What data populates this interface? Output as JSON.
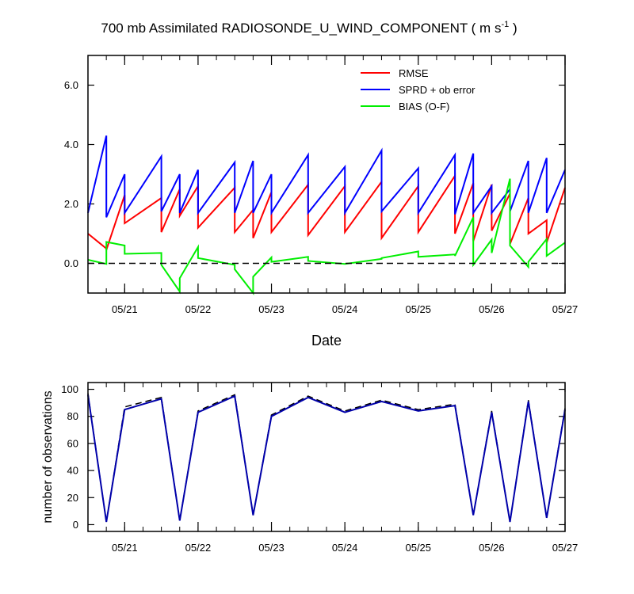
{
  "chart_data": [
    {
      "type": "line",
      "title_main": "700 mb Assimilated RADIOSONDE_U_WIND_COMPONENT ( m s",
      "title_sup": "-1",
      "title_end": " )",
      "xlabel": "Date",
      "ylabel": "",
      "ylim": [
        -1.0,
        7.0
      ],
      "xlim": [
        0,
        6.5
      ],
      "yticks": [
        0.0,
        2.0,
        4.0,
        6.0
      ],
      "ytick_labels": [
        "0.0",
        "2.0",
        "4.0",
        "6.0"
      ],
      "xticks": [
        0.5,
        1.5,
        2.5,
        3.5,
        4.5,
        5.5,
        6.5
      ],
      "xtick_labels": [
        "05/21",
        "05/22",
        "05/23",
        "05/24",
        "05/25",
        "05/26",
        "05/27"
      ],
      "zero_line": 0,
      "legend_position": "top-right",
      "series": [
        {
          "name": "RMSE",
          "color": "#ff0000",
          "points": [
            [
              0,
              1.0
            ],
            [
              0.25,
              0.5
            ],
            [
              0.25,
              0.45
            ],
            [
              0.5,
              2.3
            ],
            [
              0.5,
              1.35
            ],
            [
              1.0,
              2.2
            ],
            [
              1.0,
              1.05
            ],
            [
              1.25,
              2.5
            ],
            [
              1.25,
              1.6
            ],
            [
              1.5,
              2.6
            ],
            [
              1.5,
              1.2
            ],
            [
              2.0,
              2.55
            ],
            [
              2.0,
              1.05
            ],
            [
              2.25,
              1.8
            ],
            [
              2.25,
              0.85
            ],
            [
              2.5,
              2.4
            ],
            [
              2.5,
              1.05
            ],
            [
              3.0,
              2.65
            ],
            [
              3.0,
              0.95
            ],
            [
              3.5,
              2.6
            ],
            [
              3.5,
              1.05
            ],
            [
              4.0,
              2.75
            ],
            [
              4.0,
              0.85
            ],
            [
              4.5,
              2.6
            ],
            [
              4.5,
              1.05
            ],
            [
              5.0,
              2.95
            ],
            [
              5.0,
              1.0
            ],
            [
              5.25,
              2.7
            ],
            [
              5.25,
              0.75
            ],
            [
              5.5,
              2.65
            ],
            [
              5.5,
              1.1
            ],
            [
              5.75,
              2.35
            ],
            [
              5.75,
              0.65
            ],
            [
              6.0,
              2.2
            ],
            [
              6.0,
              1.0
            ],
            [
              6.25,
              1.45
            ],
            [
              6.25,
              0.7
            ],
            [
              6.5,
              2.55
            ]
          ]
        },
        {
          "name": "SPRD + ob error",
          "color": "#0000ff",
          "points": [
            [
              0,
              1.7
            ],
            [
              0.25,
              4.3
            ],
            [
              0.25,
              1.55
            ],
            [
              0.5,
              3.0
            ],
            [
              0.5,
              1.7
            ],
            [
              1.0,
              3.6
            ],
            [
              1.0,
              1.75
            ],
            [
              1.25,
              3.0
            ],
            [
              1.25,
              1.7
            ],
            [
              1.5,
              3.15
            ],
            [
              1.5,
              1.7
            ],
            [
              2.0,
              3.4
            ],
            [
              2.0,
              1.7
            ],
            [
              2.25,
              3.45
            ],
            [
              2.25,
              1.7
            ],
            [
              2.5,
              3.0
            ],
            [
              2.5,
              1.7
            ],
            [
              3.0,
              3.65
            ],
            [
              3.0,
              1.7
            ],
            [
              3.5,
              3.25
            ],
            [
              3.5,
              1.7
            ],
            [
              4.0,
              3.8
            ],
            [
              4.0,
              1.75
            ],
            [
              4.5,
              3.2
            ],
            [
              4.5,
              1.7
            ],
            [
              5.0,
              3.65
            ],
            [
              5.0,
              1.65
            ],
            [
              5.25,
              3.7
            ],
            [
              5.25,
              1.7
            ],
            [
              5.5,
              2.6
            ],
            [
              5.5,
              1.7
            ],
            [
              5.75,
              2.5
            ],
            [
              5.75,
              1.75
            ],
            [
              6.0,
              3.45
            ],
            [
              6.0,
              1.7
            ],
            [
              6.25,
              3.55
            ],
            [
              6.25,
              1.7
            ],
            [
              6.5,
              3.15
            ]
          ]
        },
        {
          "name": "BIAS (O-F)",
          "color": "#00ee00",
          "points": [
            [
              0,
              0.12
            ],
            [
              0.25,
              -0.02
            ],
            [
              0.25,
              0.72
            ],
            [
              0.5,
              0.6
            ],
            [
              0.5,
              0.32
            ],
            [
              1.0,
              0.35
            ],
            [
              1.0,
              -0.05
            ],
            [
              1.25,
              -0.95
            ],
            [
              1.25,
              -0.5
            ],
            [
              1.5,
              0.55
            ],
            [
              1.5,
              0.18
            ],
            [
              2.0,
              -0.05
            ],
            [
              2.0,
              -0.2
            ],
            [
              2.25,
              -1.0
            ],
            [
              2.25,
              -0.45
            ],
            [
              2.5,
              0.2
            ],
            [
              2.5,
              0.05
            ],
            [
              3.0,
              0.22
            ],
            [
              3.0,
              0.08
            ],
            [
              3.5,
              -0.02
            ],
            [
              3.5,
              -0.02
            ],
            [
              4.0,
              0.15
            ],
            [
              4.0,
              0.18
            ],
            [
              4.5,
              0.4
            ],
            [
              4.5,
              0.22
            ],
            [
              5.0,
              0.3
            ],
            [
              5.0,
              0.25
            ],
            [
              5.25,
              1.55
            ],
            [
              5.25,
              -0.05
            ],
            [
              5.5,
              0.8
            ],
            [
              5.5,
              0.35
            ],
            [
              5.75,
              2.85
            ],
            [
              5.75,
              0.6
            ],
            [
              6.0,
              -0.12
            ],
            [
              6.0,
              0.05
            ],
            [
              6.25,
              0.82
            ],
            [
              6.25,
              0.25
            ],
            [
              6.5,
              0.7
            ]
          ]
        },
        {
          "name": "zero",
          "color": "#000000",
          "dashed": true,
          "hide_in_legend": true,
          "points": [
            [
              0,
              0
            ],
            [
              6.5,
              0
            ]
          ]
        }
      ]
    },
    {
      "type": "line",
      "title": "",
      "xlabel": "",
      "ylabel": "number of observations",
      "ylim": [
        -5,
        105
      ],
      "xlim": [
        0,
        6.5
      ],
      "yticks": [
        0,
        20,
        40,
        60,
        80,
        100
      ],
      "ytick_labels": [
        "0",
        "20",
        "40",
        "60",
        "80",
        "100"
      ],
      "xticks": [
        0.5,
        1.5,
        2.5,
        3.5,
        4.5,
        5.5,
        6.5
      ],
      "xtick_labels": [
        "05/21",
        "05/22",
        "05/23",
        "05/24",
        "05/25",
        "05/26",
        "05/27"
      ],
      "series": [
        {
          "name": "possible",
          "color": "#000000",
          "dashed": true,
          "values_x": [
            0,
            0.25,
            0.5,
            1.0,
            1.25,
            1.5,
            2.0,
            2.25,
            2.5,
            3.0,
            3.5,
            4.0,
            4.5,
            5.0,
            5.25,
            5.5,
            5.75,
            6.0,
            6.25,
            6.5
          ],
          "values_y": [
            97,
            2,
            87,
            94,
            3,
            84,
            96,
            7,
            81,
            95,
            84,
            92,
            85,
            89,
            7,
            84,
            2,
            92,
            5,
            86
          ]
        },
        {
          "name": "used",
          "color": "#0000aa",
          "values_x": [
            0,
            0.25,
            0.5,
            1.0,
            1.25,
            1.5,
            2.0,
            2.25,
            2.5,
            3.0,
            3.5,
            4.0,
            4.5,
            5.0,
            5.25,
            5.5,
            5.75,
            6.0,
            6.25,
            6.5
          ],
          "values_y": [
            96,
            2,
            85,
            93,
            3,
            83,
            95,
            7,
            80,
            94,
            83,
            91,
            84,
            88,
            7,
            83,
            2,
            91,
            5,
            85
          ]
        }
      ]
    }
  ],
  "legend": [
    {
      "label": "RMSE",
      "color": "#ff0000"
    },
    {
      "label": "SPRD + ob error",
      "color": "#0000ff"
    },
    {
      "label": "BIAS (O-F)",
      "color": "#00ee00"
    }
  ]
}
